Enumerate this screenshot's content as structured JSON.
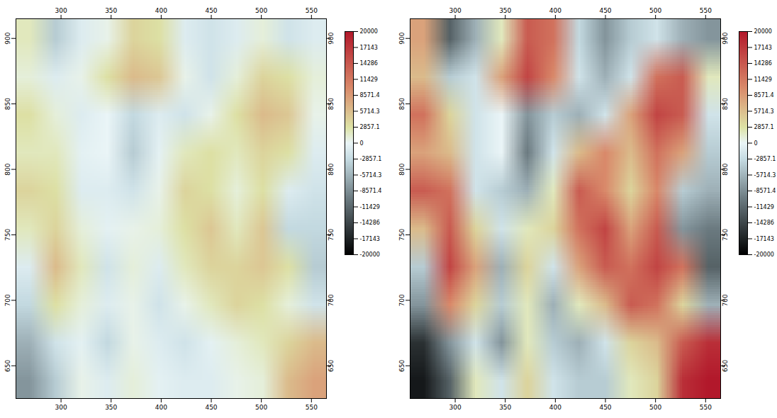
{
  "chart_data": [
    {
      "type": "heatmap",
      "xlim": [
        255,
        565
      ],
      "xticks": [
        300,
        350,
        400,
        450,
        500,
        550
      ],
      "ylim": [
        625,
        915
      ],
      "yticks": [
        650,
        700,
        750,
        800,
        850,
        900
      ],
      "cells": [
        [
          2000,
          -4000,
          -1000,
          500,
          4000,
          3000,
          -1000,
          -2000,
          -1000,
          1000,
          -2000,
          -1000
        ],
        [
          1000,
          -1000,
          500,
          3000,
          6000,
          5000,
          500,
          -2000,
          1000,
          4000,
          3000,
          1000
        ],
        [
          3000,
          1000,
          -1000,
          0,
          -3000,
          -1000,
          -2000,
          500,
          3000,
          6000,
          5000,
          500
        ],
        [
          2000,
          2000,
          -500,
          0,
          -4000,
          -500,
          2000,
          3000,
          2000,
          4000,
          3000,
          -1000
        ],
        [
          4000,
          3000,
          -1000,
          -1000,
          -2000,
          500,
          4000,
          3000,
          1000,
          3000,
          -1000,
          -2000
        ],
        [
          2000,
          4000,
          1000,
          -500,
          500,
          1000,
          3000,
          5000,
          2000,
          5000,
          -3000,
          -3000
        ],
        [
          -1000,
          6000,
          2000,
          -2000,
          1000,
          -1000,
          2000,
          4000,
          4000,
          5000,
          3000,
          -4000
        ],
        [
          -3000,
          3000,
          1000,
          -1000,
          500,
          -2000,
          500,
          2000,
          4000,
          3000,
          1000,
          -2000
        ],
        [
          -6000,
          -2000,
          -500,
          -3000,
          500,
          -1000,
          -2000,
          -500,
          1000,
          2000,
          4000,
          6000
        ],
        [
          -8000,
          -4000,
          500,
          -1000,
          1000,
          -500,
          -1000,
          -1000,
          500,
          1000,
          6000,
          8000
        ]
      ],
      "colorbar": {
        "range": [
          -20000,
          20000
        ],
        "ticks": [
          -20000,
          -17143,
          -14286,
          -11429,
          -8571.4,
          -5714.3,
          -2857.1,
          0,
          2857.1,
          5714.3,
          8571.4,
          11429,
          14286,
          17143,
          20000
        ]
      }
    },
    {
      "type": "heatmap",
      "xlim": [
        255,
        565
      ],
      "xticks": [
        300,
        350,
        400,
        450,
        500,
        550
      ],
      "ylim": [
        625,
        915
      ],
      "yticks": [
        650,
        700,
        750,
        800,
        850,
        900
      ],
      "cells": [
        [
          8000,
          -12000,
          -6000,
          2000,
          14000,
          12000,
          -3000,
          -8000,
          -4000,
          -2000,
          -6000,
          -8000
        ],
        [
          6000,
          -4000,
          -2000,
          8000,
          16000,
          10000,
          -2000,
          -6000,
          -2000,
          12000,
          14000,
          2000
        ],
        [
          12000,
          4000,
          -2000,
          0,
          -8000,
          -4000,
          -6000,
          -2000,
          8000,
          16000,
          14000,
          -2000
        ],
        [
          8000,
          6000,
          -2000,
          0,
          -10000,
          -2000,
          6000,
          10000,
          6000,
          12000,
          8000,
          -4000
        ],
        [
          14000,
          12000,
          -2000,
          -4000,
          -6000,
          2000,
          14000,
          10000,
          4000,
          10000,
          -4000,
          -6000
        ],
        [
          6000,
          14000,
          4000,
          -2000,
          2000,
          4000,
          12000,
          16000,
          8000,
          14000,
          -8000,
          -10000
        ],
        [
          -4000,
          16000,
          8000,
          -6000,
          4000,
          -2000,
          8000,
          14000,
          12000,
          16000,
          12000,
          -12000
        ],
        [
          -8000,
          10000,
          4000,
          -4000,
          2000,
          -6000,
          2000,
          6000,
          14000,
          12000,
          4000,
          -6000
        ],
        [
          -16000,
          -8000,
          -2000,
          -8000,
          2000,
          -4000,
          -6000,
          -2000,
          4000,
          6000,
          14000,
          18000
        ],
        [
          -18000,
          -12000,
          2000,
          -2000,
          4000,
          -2000,
          -4000,
          -4000,
          2000,
          4000,
          18000,
          20000
        ]
      ],
      "colorbar": {
        "range": [
          -20000,
          20000
        ],
        "ticks": [
          -20000,
          -17143,
          -14286,
          -11429,
          -8571.4,
          -5714.3,
          -2857.1,
          0,
          2857.1,
          5714.3,
          8571.4,
          11429,
          14286,
          17143,
          20000
        ]
      }
    }
  ]
}
